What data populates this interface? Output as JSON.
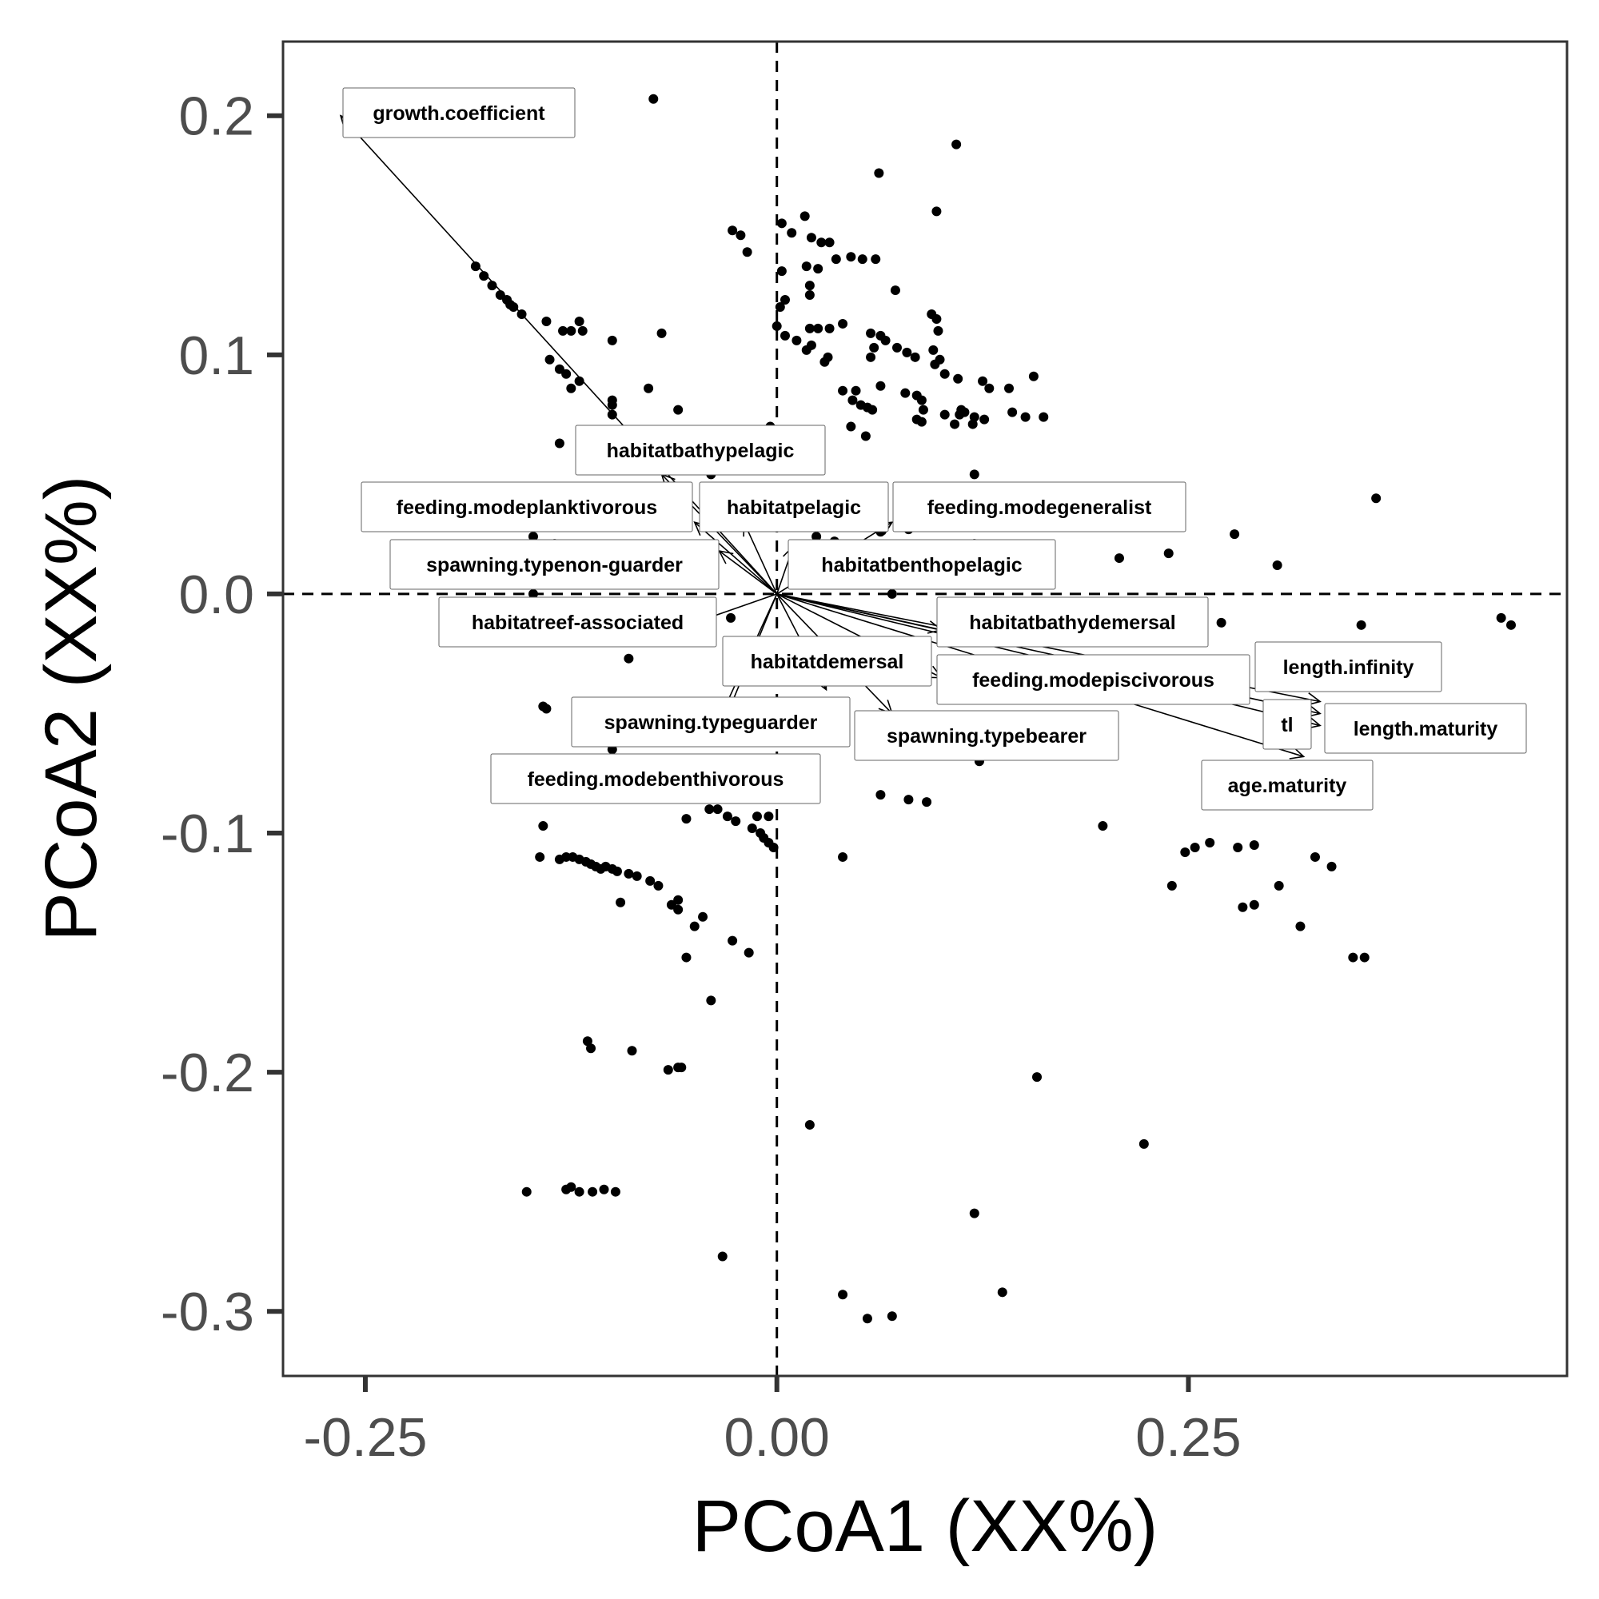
{
  "chart_data": {
    "type": "scatter",
    "title": "",
    "xlabel": "PCoA1 (XX%)",
    "ylabel": "PCoA2 (XX%)",
    "xlim": [
      -0.3,
      0.48
    ],
    "ylim": [
      -0.327,
      0.231
    ],
    "x_ticks": [
      {
        "value": -0.25,
        "label": "-0.25"
      },
      {
        "value": 0.0,
        "label": "0.00"
      },
      {
        "value": 0.25,
        "label": "0.25"
      }
    ],
    "y_ticks": [
      {
        "value": 0.2,
        "label": "0.2"
      },
      {
        "value": 0.1,
        "label": "0.1"
      },
      {
        "value": 0.0,
        "label": "0.0"
      },
      {
        "value": -0.1,
        "label": "-0.1"
      },
      {
        "value": -0.2,
        "label": "-0.2"
      },
      {
        "value": -0.3,
        "label": "-0.3"
      }
    ],
    "grid": false,
    "reference_lines": {
      "x": 0,
      "y": 0,
      "style": "dashed"
    },
    "vectors": [
      {
        "name": "growth.coefficient",
        "x": -0.265,
        "y": 0.2
      },
      {
        "name": "habitatbathypelagic",
        "x": -0.07,
        "y": 0.05
      },
      {
        "name": "feeding.modeplanktivorous",
        "x": -0.05,
        "y": 0.03
      },
      {
        "name": "habitatpelagic",
        "x": -0.02,
        "y": 0.03
      },
      {
        "name": "feeding.modegeneralist",
        "x": 0.07,
        "y": 0.03
      },
      {
        "name": "spawning.typenon-guarder",
        "x": -0.035,
        "y": 0.018
      },
      {
        "name": "habitatbenthopelagic",
        "x": 0.01,
        "y": 0.02
      },
      {
        "name": "habitatreef-associated",
        "x": -0.05,
        "y": -0.012
      },
      {
        "name": "habitatbathydemersal",
        "x": 0.1,
        "y": -0.015
      },
      {
        "name": "habitatdemersal",
        "x": 0.03,
        "y": -0.04
      },
      {
        "name": "feeding.modepiscivorous",
        "x": 0.1,
        "y": -0.035
      },
      {
        "name": "length.infinity",
        "x": 0.33,
        "y": -0.045
      },
      {
        "name": "tl",
        "x": 0.33,
        "y": -0.05
      },
      {
        "name": "length.maturity",
        "x": 0.33,
        "y": -0.055
      },
      {
        "name": "age.maturity",
        "x": 0.32,
        "y": -0.068
      },
      {
        "name": "spawning.typeguarder",
        "x": -0.03,
        "y": -0.05
      },
      {
        "name": "spawning.typebearer",
        "x": 0.07,
        "y": -0.05
      },
      {
        "name": "feeding.modebenthivorous",
        "x": -0.04,
        "y": -0.06
      }
    ],
    "points": [
      {
        "x": -0.075,
        "y": 0.207
      },
      {
        "x": 0.109,
        "y": 0.188
      },
      {
        "x": 0.062,
        "y": 0.176
      },
      {
        "x": 0.097,
        "y": 0.16
      },
      {
        "x": 0.036,
        "y": 0.14
      },
      {
        "x": 0.003,
        "y": 0.155
      },
      {
        "x": 0.017,
        "y": 0.158
      },
      {
        "x": 0.032,
        "y": 0.147
      },
      {
        "x": -0.027,
        "y": 0.152
      },
      {
        "x": -0.022,
        "y": 0.15
      },
      {
        "x": -0.018,
        "y": 0.143
      },
      {
        "x": 0.009,
        "y": 0.151
      },
      {
        "x": 0.021,
        "y": 0.149
      },
      {
        "x": 0.027,
        "y": 0.147
      },
      {
        "x": 0.045,
        "y": 0.141
      },
      {
        "x": 0.052,
        "y": 0.14
      },
      {
        "x": 0.06,
        "y": 0.14
      },
      {
        "x": 0.018,
        "y": 0.137
      },
      {
        "x": 0.025,
        "y": 0.136
      },
      {
        "x": 0.003,
        "y": 0.135
      },
      {
        "x": 0.02,
        "y": 0.129
      },
      {
        "x": 0.072,
        "y": 0.127
      },
      {
        "x": 0.02,
        "y": 0.125
      },
      {
        "x": 0.002,
        "y": 0.12
      },
      {
        "x": 0.005,
        "y": 0.123
      },
      {
        "x": 0.094,
        "y": 0.117
      },
      {
        "x": 0.097,
        "y": 0.115
      },
      {
        "x": 0.0,
        "y": 0.112
      },
      {
        "x": 0.02,
        "y": 0.111
      },
      {
        "x": 0.025,
        "y": 0.111
      },
      {
        "x": 0.04,
        "y": 0.113
      },
      {
        "x": 0.032,
        "y": 0.111
      },
      {
        "x": 0.005,
        "y": 0.108
      },
      {
        "x": 0.012,
        "y": 0.106
      },
      {
        "x": 0.021,
        "y": 0.104
      },
      {
        "x": 0.018,
        "y": 0.102
      },
      {
        "x": 0.098,
        "y": 0.11
      },
      {
        "x": 0.057,
        "y": 0.109
      },
      {
        "x": 0.063,
        "y": 0.108
      },
      {
        "x": 0.066,
        "y": 0.106
      },
      {
        "x": 0.059,
        "y": 0.103
      },
      {
        "x": 0.073,
        "y": 0.103
      },
      {
        "x": 0.095,
        "y": 0.102
      },
      {
        "x": 0.079,
        "y": 0.101
      },
      {
        "x": 0.084,
        "y": 0.099
      },
      {
        "x": 0.057,
        "y": 0.099
      },
      {
        "x": 0.099,
        "y": 0.098
      },
      {
        "x": 0.096,
        "y": 0.096
      },
      {
        "x": 0.031,
        "y": 0.099
      },
      {
        "x": 0.029,
        "y": 0.097
      },
      {
        "x": 0.102,
        "y": 0.092
      },
      {
        "x": 0.11,
        "y": 0.09
      },
      {
        "x": 0.125,
        "y": 0.089
      },
      {
        "x": 0.156,
        "y": 0.091
      },
      {
        "x": 0.129,
        "y": 0.086
      },
      {
        "x": 0.141,
        "y": 0.086
      },
      {
        "x": 0.04,
        "y": 0.085
      },
      {
        "x": 0.048,
        "y": 0.085
      },
      {
        "x": 0.063,
        "y": 0.087
      },
      {
        "x": 0.078,
        "y": 0.084
      },
      {
        "x": 0.085,
        "y": 0.083
      },
      {
        "x": 0.088,
        "y": 0.081
      },
      {
        "x": 0.046,
        "y": 0.081
      },
      {
        "x": 0.051,
        "y": 0.079
      },
      {
        "x": 0.055,
        "y": 0.078
      },
      {
        "x": 0.058,
        "y": 0.077
      },
      {
        "x": 0.089,
        "y": 0.077
      },
      {
        "x": 0.112,
        "y": 0.077
      },
      {
        "x": 0.114,
        "y": 0.076
      },
      {
        "x": 0.111,
        "y": 0.075
      },
      {
        "x": 0.102,
        "y": 0.075
      },
      {
        "x": 0.12,
        "y": 0.074
      },
      {
        "x": 0.126,
        "y": 0.073
      },
      {
        "x": 0.143,
        "y": 0.076
      },
      {
        "x": 0.151,
        "y": 0.074
      },
      {
        "x": 0.162,
        "y": 0.074
      },
      {
        "x": 0.085,
        "y": 0.073
      },
      {
        "x": 0.088,
        "y": 0.072
      },
      {
        "x": 0.108,
        "y": 0.071
      },
      {
        "x": 0.119,
        "y": 0.071
      },
      {
        "x": 0.045,
        "y": 0.07
      },
      {
        "x": 0.054,
        "y": 0.066
      },
      {
        "x": -0.004,
        "y": 0.07
      },
      {
        "x": -0.183,
        "y": 0.137
      },
      {
        "x": -0.178,
        "y": 0.133
      },
      {
        "x": -0.173,
        "y": 0.129
      },
      {
        "x": -0.168,
        "y": 0.125
      },
      {
        "x": -0.164,
        "y": 0.123
      },
      {
        "x": -0.162,
        "y": 0.121
      },
      {
        "x": -0.16,
        "y": 0.12
      },
      {
        "x": -0.155,
        "y": 0.117
      },
      {
        "x": -0.14,
        "y": 0.114
      },
      {
        "x": -0.12,
        "y": 0.114
      },
      {
        "x": -0.13,
        "y": 0.11
      },
      {
        "x": -0.125,
        "y": 0.11
      },
      {
        "x": -0.118,
        "y": 0.11
      },
      {
        "x": -0.07,
        "y": 0.109
      },
      {
        "x": -0.1,
        "y": 0.106
      },
      {
        "x": -0.138,
        "y": 0.098
      },
      {
        "x": -0.132,
        "y": 0.094
      },
      {
        "x": -0.128,
        "y": 0.092
      },
      {
        "x": -0.12,
        "y": 0.089
      },
      {
        "x": -0.125,
        "y": 0.086
      },
      {
        "x": -0.078,
        "y": 0.086
      },
      {
        "x": -0.1,
        "y": 0.081
      },
      {
        "x": -0.1,
        "y": 0.079
      },
      {
        "x": -0.06,
        "y": 0.077
      },
      {
        "x": -0.1,
        "y": 0.075
      },
      {
        "x": -0.132,
        "y": 0.063
      },
      {
        "x": -0.053,
        "y": 0.062
      },
      {
        "x": -0.04,
        "y": 0.05
      },
      {
        "x": 0.12,
        "y": 0.05
      },
      {
        "x": 0.238,
        "y": 0.017
      },
      {
        "x": 0.278,
        "y": 0.025
      },
      {
        "x": 0.304,
        "y": 0.012
      },
      {
        "x": 0.364,
        "y": 0.04
      },
      {
        "x": 0.208,
        "y": 0.015
      },
      {
        "x": 0.27,
        "y": -0.012
      },
      {
        "x": 0.355,
        "y": -0.013
      },
      {
        "x": 0.44,
        "y": -0.01
      },
      {
        "x": 0.446,
        "y": -0.013
      },
      {
        "x": -0.148,
        "y": 0.024
      },
      {
        "x": -0.135,
        "y": 0.021
      },
      {
        "x": 0.063,
        "y": 0.026
      },
      {
        "x": 0.024,
        "y": 0.024
      },
      {
        "x": 0.035,
        "y": 0.022
      },
      {
        "x": 0.12,
        "y": 0.021
      },
      {
        "x": 0.08,
        "y": 0.027
      },
      {
        "x": -0.148,
        "y": 0.0
      },
      {
        "x": 0.07,
        "y": 0.0
      },
      {
        "x": 0.084,
        "y": 0.02
      },
      {
        "x": -0.1,
        "y": -0.015
      },
      {
        "x": -0.028,
        "y": -0.01
      },
      {
        "x": -0.09,
        "y": -0.027
      },
      {
        "x": -0.115,
        "y": -0.017
      },
      {
        "x": -0.125,
        "y": -0.017
      },
      {
        "x": -0.142,
        "y": -0.047
      },
      {
        "x": -0.14,
        "y": -0.048
      },
      {
        "x": -0.067,
        "y": -0.062
      },
      {
        "x": -0.1,
        "y": -0.065
      },
      {
        "x": 0.018,
        "y": -0.069
      },
      {
        "x": 0.123,
        "y": -0.07
      },
      {
        "x": -0.028,
        "y": -0.083
      },
      {
        "x": 0.063,
        "y": -0.084
      },
      {
        "x": 0.08,
        "y": -0.086
      },
      {
        "x": 0.091,
        "y": -0.087
      },
      {
        "x": -0.041,
        "y": -0.09
      },
      {
        "x": -0.036,
        "y": -0.09
      },
      {
        "x": -0.03,
        "y": -0.093
      },
      {
        "x": -0.025,
        "y": -0.095
      },
      {
        "x": -0.012,
        "y": -0.093
      },
      {
        "x": -0.055,
        "y": -0.094
      },
      {
        "x": -0.005,
        "y": -0.093
      },
      {
        "x": -0.015,
        "y": -0.098
      },
      {
        "x": -0.01,
        "y": -0.1
      },
      {
        "x": -0.008,
        "y": -0.102
      },
      {
        "x": -0.005,
        "y": -0.104
      },
      {
        "x": -0.002,
        "y": -0.106
      },
      {
        "x": -0.142,
        "y": -0.097
      },
      {
        "x": -0.144,
        "y": -0.11
      },
      {
        "x": -0.132,
        "y": -0.111
      },
      {
        "x": -0.128,
        "y": -0.11
      },
      {
        "x": -0.124,
        "y": -0.11
      },
      {
        "x": -0.12,
        "y": -0.111
      },
      {
        "x": -0.116,
        "y": -0.112
      },
      {
        "x": -0.113,
        "y": -0.113
      },
      {
        "x": -0.11,
        "y": -0.114
      },
      {
        "x": -0.107,
        "y": -0.115
      },
      {
        "x": -0.104,
        "y": -0.114
      },
      {
        "x": -0.1,
        "y": -0.115
      },
      {
        "x": -0.097,
        "y": -0.116
      },
      {
        "x": -0.09,
        "y": -0.117
      },
      {
        "x": -0.085,
        "y": -0.118
      },
      {
        "x": -0.077,
        "y": -0.12
      },
      {
        "x": -0.072,
        "y": -0.122
      },
      {
        "x": 0.04,
        "y": -0.11
      },
      {
        "x": 0.198,
        "y": -0.097
      },
      {
        "x": -0.06,
        "y": -0.128
      },
      {
        "x": -0.064,
        "y": -0.13
      },
      {
        "x": -0.095,
        "y": -0.129
      },
      {
        "x": -0.06,
        "y": -0.132
      },
      {
        "x": -0.045,
        "y": -0.135
      },
      {
        "x": -0.05,
        "y": -0.139
      },
      {
        "x": -0.027,
        "y": -0.145
      },
      {
        "x": -0.017,
        "y": -0.15
      },
      {
        "x": -0.055,
        "y": -0.152
      },
      {
        "x": -0.04,
        "y": -0.17
      },
      {
        "x": -0.115,
        "y": -0.187
      },
      {
        "x": -0.113,
        "y": -0.19
      },
      {
        "x": -0.088,
        "y": -0.191
      },
      {
        "x": -0.066,
        "y": -0.199
      },
      {
        "x": -0.06,
        "y": -0.198
      },
      {
        "x": -0.058,
        "y": -0.198
      },
      {
        "x": 0.158,
        "y": -0.202
      },
      {
        "x": 0.02,
        "y": -0.222
      },
      {
        "x": 0.223,
        "y": -0.23
      },
      {
        "x": -0.152,
        "y": -0.25
      },
      {
        "x": -0.128,
        "y": -0.249
      },
      {
        "x": -0.125,
        "y": -0.248
      },
      {
        "x": -0.12,
        "y": -0.25
      },
      {
        "x": -0.112,
        "y": -0.25
      },
      {
        "x": -0.105,
        "y": -0.249
      },
      {
        "x": -0.098,
        "y": -0.25
      },
      {
        "x": 0.12,
        "y": -0.259
      },
      {
        "x": -0.033,
        "y": -0.277
      },
      {
        "x": 0.04,
        "y": -0.293
      },
      {
        "x": 0.137,
        "y": -0.292
      },
      {
        "x": 0.055,
        "y": -0.303
      },
      {
        "x": 0.07,
        "y": -0.302
      },
      {
        "x": 0.263,
        "y": -0.104
      },
      {
        "x": 0.254,
        "y": -0.106
      },
      {
        "x": 0.248,
        "y": -0.108
      },
      {
        "x": 0.28,
        "y": -0.106
      },
      {
        "x": 0.29,
        "y": -0.105
      },
      {
        "x": 0.327,
        "y": -0.11
      },
      {
        "x": 0.337,
        "y": -0.114
      },
      {
        "x": 0.24,
        "y": -0.122
      },
      {
        "x": 0.305,
        "y": -0.122
      },
      {
        "x": 0.283,
        "y": -0.131
      },
      {
        "x": 0.29,
        "y": -0.13
      },
      {
        "x": 0.318,
        "y": -0.139
      },
      {
        "x": 0.35,
        "y": -0.152
      },
      {
        "x": 0.357,
        "y": -0.152
      }
    ]
  }
}
